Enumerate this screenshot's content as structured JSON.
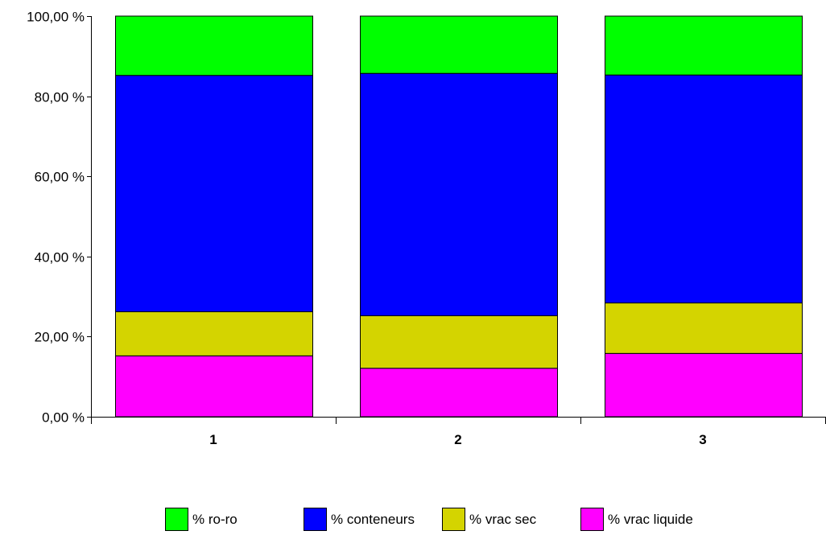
{
  "chart_data": {
    "type": "bar",
    "stacked": true,
    "percent": true,
    "categories": [
      "1",
      "2",
      "3"
    ],
    "series": [
      {
        "name": "% vrac liquide",
        "color": "#ff00ff",
        "values": [
          15.2,
          12.1,
          15.8
        ]
      },
      {
        "name": "% vrac sec",
        "color": "#d4d400",
        "values": [
          11.0,
          13.1,
          12.6
        ]
      },
      {
        "name": "% conteneurs",
        "color": "#0000ff",
        "values": [
          59.0,
          60.5,
          56.9
        ]
      },
      {
        "name": "% ro-ro",
        "color": "#00ff00",
        "values": [
          14.8,
          14.3,
          14.7
        ]
      }
    ],
    "legend_order": [
      "% ro-ro",
      "% conteneurs",
      "% vrac sec",
      "% vrac liquide"
    ],
    "legend_position": "bottom",
    "yticks": [
      "0,00 %",
      "20,00 %",
      "40,00 %",
      "60,00 %",
      "80,00 %",
      "100,00 %"
    ],
    "ylim": [
      0,
      100
    ],
    "grid": false,
    "xlabel": "",
    "ylabel": "",
    "title": ""
  }
}
